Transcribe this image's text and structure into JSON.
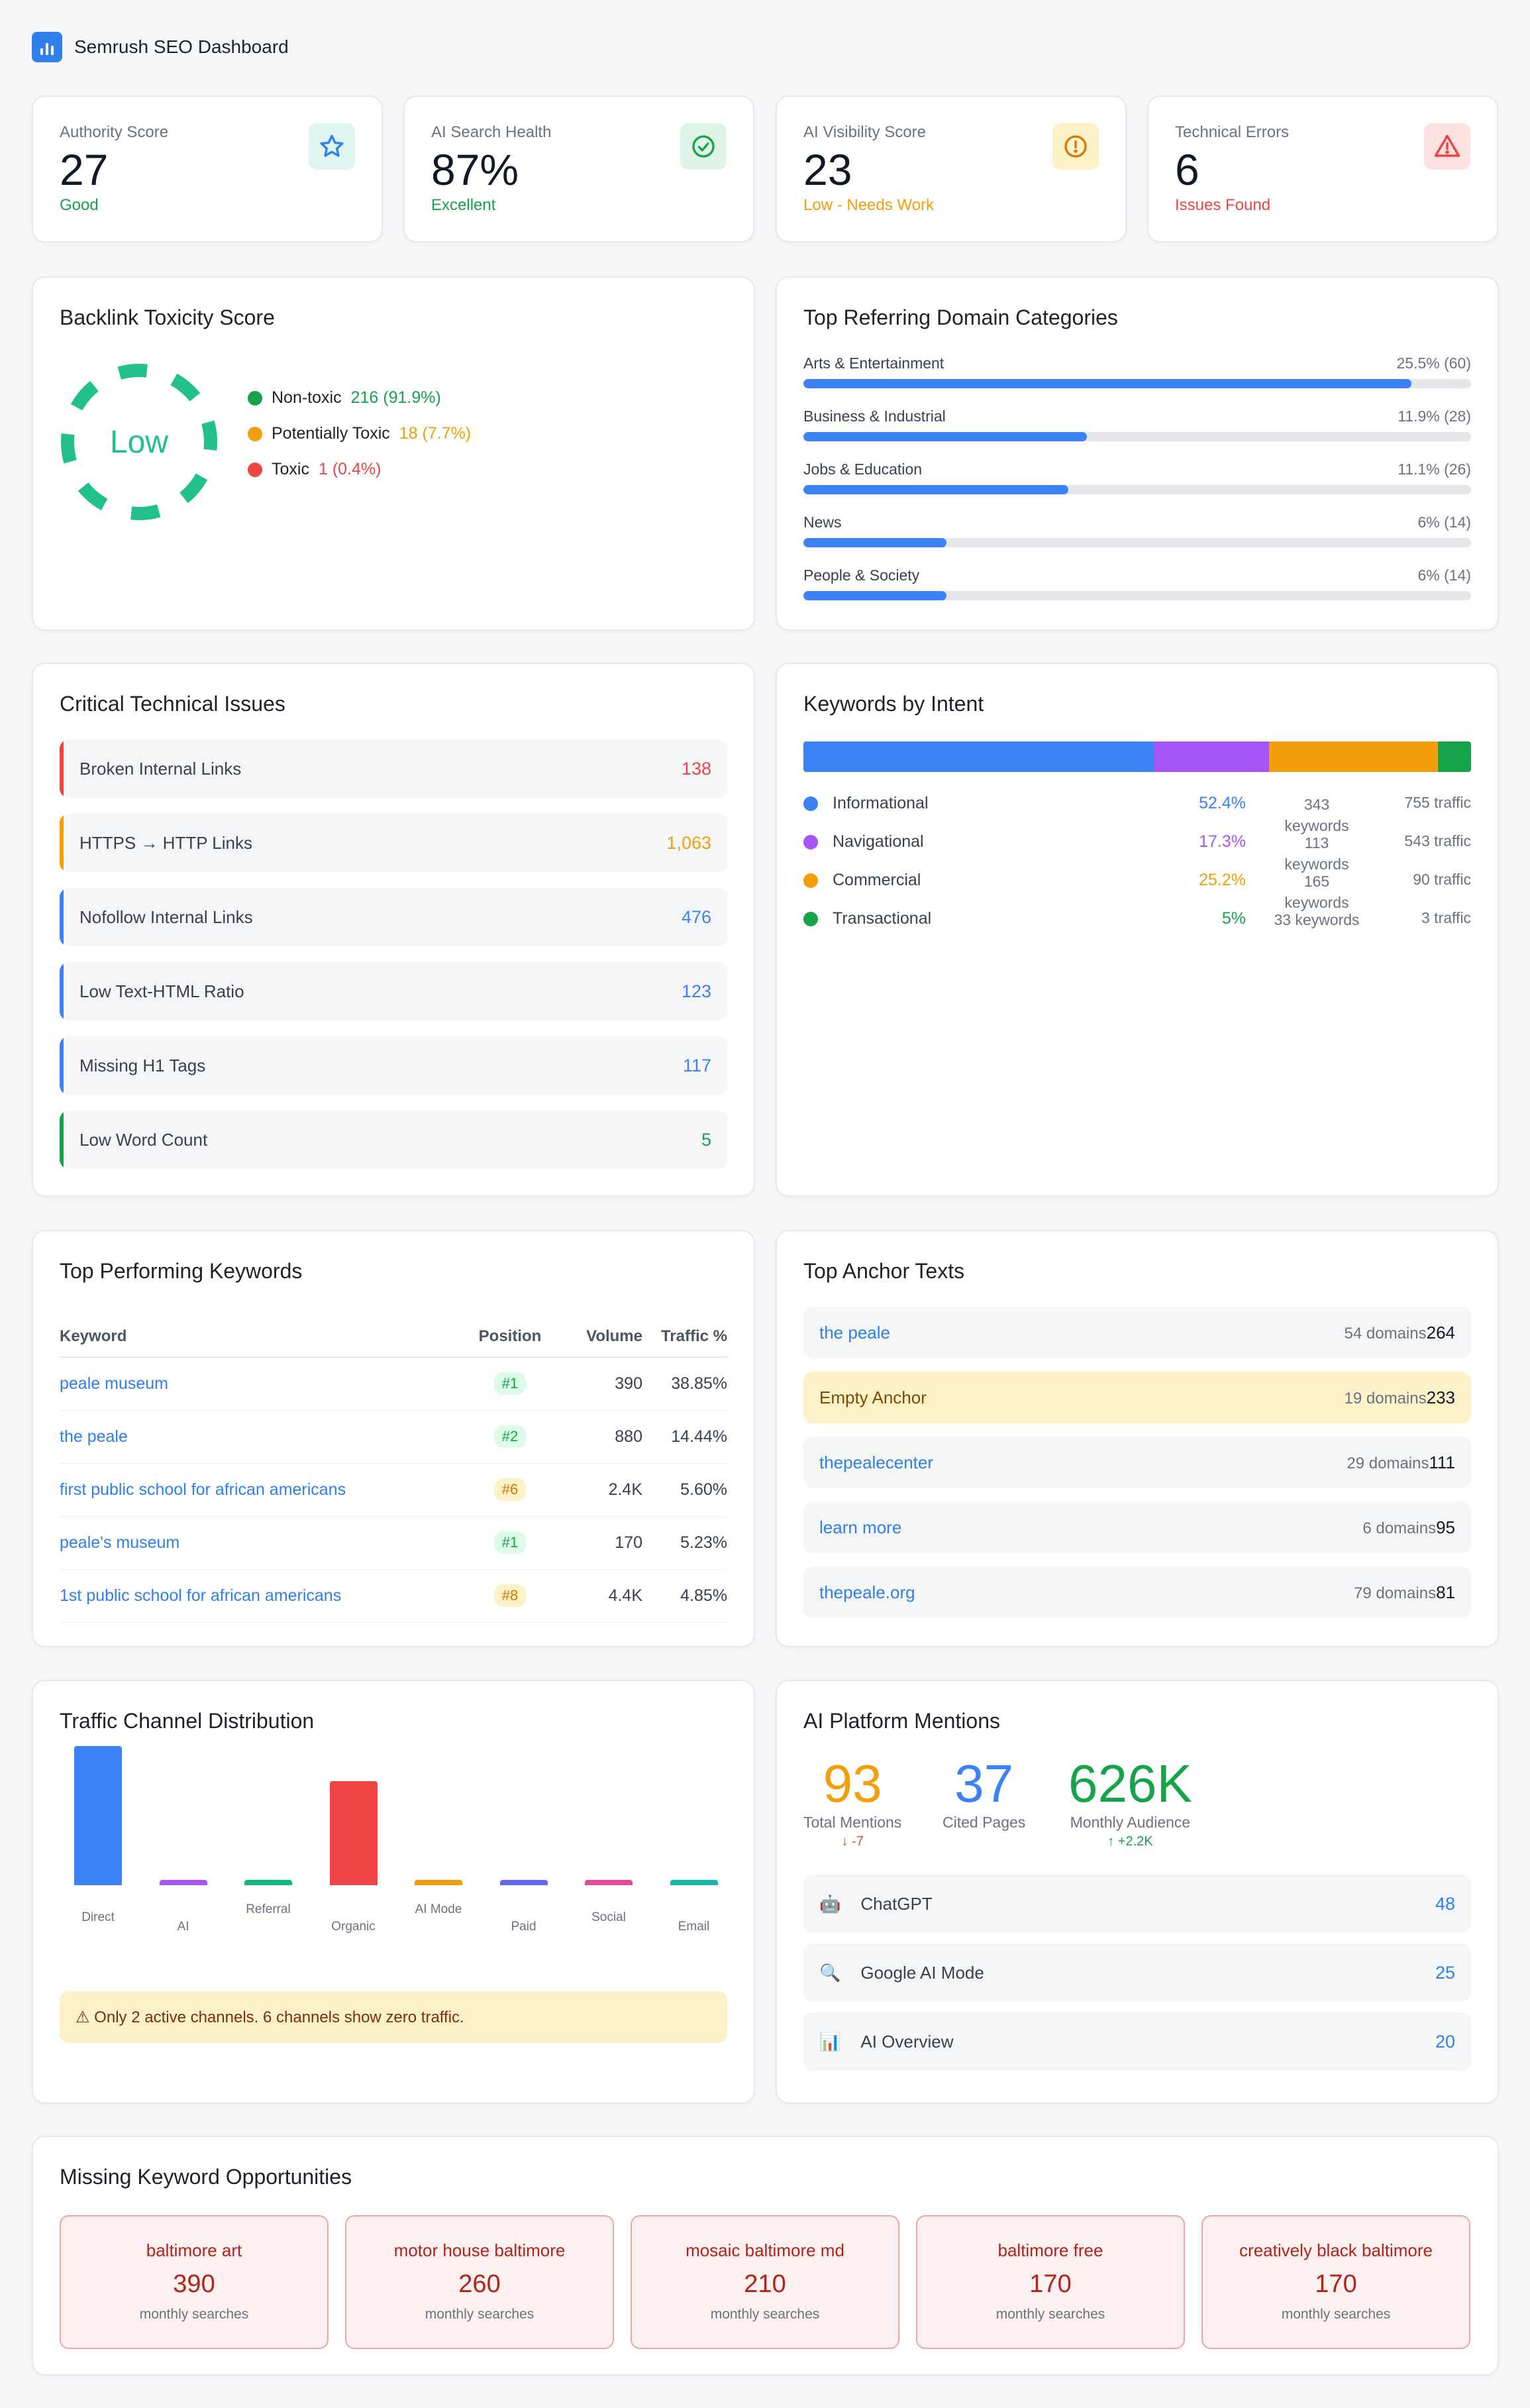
{
  "header": {
    "title": "Semrush SEO Dashboard",
    "icon": "bar-chart-icon"
  },
  "kpis": [
    {
      "label": "Authority Score",
      "value": "27",
      "status": "Good",
      "status_color": "#16a34a",
      "icon": "star-icon",
      "icon_bg": "#dff5f1",
      "icon_color": "#2f80ed"
    },
    {
      "label": "AI Search Health",
      "value": "87%",
      "status": "Excellent",
      "status_color": "#16a34a",
      "icon": "check-circle-icon",
      "icon_bg": "#dff5e8",
      "icon_color": "#16a34a"
    },
    {
      "label": "AI Visibility Score",
      "value": "23",
      "status": "Low - Needs Work",
      "status_color": "#f59e0b",
      "icon": "alert-circle-icon",
      "icon_bg": "#fdf1c7",
      "icon_color": "#d97706"
    },
    {
      "label": "Technical Errors",
      "value": "6",
      "status": "Issues Found",
      "status_color": "#ef4444",
      "icon": "warning-triangle-icon",
      "icon_bg": "#fde2e2",
      "icon_color": "#ef4444"
    }
  ],
  "toxicity": {
    "title": "Backlink Toxicity Score",
    "gauge_label": "Low",
    "gauge_color": "#22c08a",
    "legend": [
      {
        "label": "Non-toxic",
        "value": "216 (91.9%)",
        "color": "#16a34a"
      },
      {
        "label": "Potentially Toxic",
        "value": "18 (7.7%)",
        "color": "#f59e0b"
      },
      {
        "label": "Toxic",
        "value": "1 (0.4%)",
        "color": "#ef4444"
      }
    ]
  },
  "domains": {
    "title": "Top Referring Domain Categories",
    "items": [
      {
        "label": "Arts & Entertainment",
        "value": "25.5% (60)",
        "share": 25.5
      },
      {
        "label": "Business & Industrial",
        "value": "11.9% (28)",
        "share": 11.9
      },
      {
        "label": "Jobs & Education",
        "value": "11.1% (26)",
        "share": 11.1
      },
      {
        "label": "News",
        "value": "6% (14)",
        "share": 6
      },
      {
        "label": "People & Society",
        "value": "6% (14)",
        "share": 6
      }
    ]
  },
  "issues": {
    "title": "Critical Technical Issues",
    "items": [
      {
        "label": "Broken Internal Links",
        "value": "138",
        "color": "#ef4444"
      },
      {
        "label": "HTTPS → HTTP Links",
        "value": "1,063",
        "color": "#f59e0b"
      },
      {
        "label": "Nofollow Internal Links",
        "value": "476",
        "color": "#3b82f6"
      },
      {
        "label": "Low Text-HTML Ratio",
        "value": "123",
        "color": "#3b82f6"
      },
      {
        "label": "Missing H1 Tags",
        "value": "117",
        "color": "#3b82f6"
      },
      {
        "label": "Low Word Count",
        "value": "5",
        "color": "#16a34a"
      }
    ]
  },
  "intent": {
    "title": "Keywords by Intent",
    "items": [
      {
        "label": "Informational",
        "pct": "52.4%",
        "share": 52.4,
        "keywords": "343 keywords",
        "traffic": "755 traffic",
        "color": "#3b82f6"
      },
      {
        "label": "Navigational",
        "pct": "17.3%",
        "share": 17.3,
        "keywords": "113 keywords",
        "traffic": "543 traffic",
        "color": "#a855f7"
      },
      {
        "label": "Commercial",
        "pct": "25.2%",
        "share": 25.2,
        "keywords": "165 keywords",
        "traffic": "90 traffic",
        "color": "#f59e0b"
      },
      {
        "label": "Transactional",
        "pct": "5%",
        "share": 5,
        "keywords": "33 keywords",
        "traffic": "3 traffic",
        "color": "#16a34a"
      }
    ]
  },
  "keywords": {
    "title": "Top Performing Keywords",
    "headers": [
      "Keyword",
      "Position",
      "Volume",
      "Traffic %"
    ],
    "rows": [
      {
        "keyword": "peale museum",
        "position": "#1",
        "pos_bg": "#dcfce7",
        "pos_color": "#16a34a",
        "volume": "390",
        "traffic": "38.85%"
      },
      {
        "keyword": "the peale",
        "position": "#2",
        "pos_bg": "#dcfce7",
        "pos_color": "#16a34a",
        "volume": "880",
        "traffic": "14.44%"
      },
      {
        "keyword": "first public school for african americans",
        "position": "#6",
        "pos_bg": "#fdf1c7",
        "pos_color": "#d97706",
        "volume": "2.4K",
        "traffic": "5.60%"
      },
      {
        "keyword": "peale's museum",
        "position": "#1",
        "pos_bg": "#dcfce7",
        "pos_color": "#16a34a",
        "volume": "170",
        "traffic": "5.23%"
      },
      {
        "keyword": "1st public school for african americans",
        "position": "#8",
        "pos_bg": "#fdf1c7",
        "pos_color": "#d97706",
        "volume": "4.4K",
        "traffic": "4.85%"
      }
    ]
  },
  "anchors": {
    "title": "Top Anchor Texts",
    "items": [
      {
        "text": "the peale",
        "domains": "54 domains",
        "count": "264"
      },
      {
        "text": "Empty Anchor",
        "domains": "19 domains",
        "count": "233"
      },
      {
        "text": "thepealecenter",
        "domains": "29 domains",
        "count": "111"
      },
      {
        "text": "learn more",
        "domains": "6 domains",
        "count": "95"
      },
      {
        "text": "thepeale.org",
        "domains": "79 domains",
        "count": "81"
      }
    ]
  },
  "chart_data": {
    "type": "bar",
    "title": "Traffic Channel Distribution",
    "categories": [
      "Direct",
      "AI",
      "Referral",
      "Organic",
      "AI Mode",
      "Paid",
      "Social",
      "Email"
    ],
    "values": [
      100,
      0,
      0,
      75,
      0,
      0,
      0,
      0
    ],
    "colors": [
      "#3b82f6",
      "#a855f7",
      "#10b981",
      "#ef4444",
      "#f59e0b",
      "#6366f1",
      "#ec4899",
      "#14b8a6"
    ],
    "ylim": [
      0,
      100
    ],
    "grid": false
  },
  "traffic": {
    "warning": "⚠ Only 2 active channels. 6 channels show zero traffic."
  },
  "ai": {
    "title": "AI Platform Mentions",
    "stats": [
      {
        "value": "93",
        "label": "Total Mentions",
        "delta": "↓ -7",
        "color": "#f59e0b",
        "delta_color": "#ef4444"
      },
      {
        "value": "37",
        "label": "Cited Pages",
        "delta": "",
        "color": "#3b82f6",
        "delta_color": "#16a34a"
      },
      {
        "value": "626K",
        "label": "Monthly Audience",
        "delta": "↑ +2.2K",
        "color": "#16a34a",
        "delta_color": "#16a34a"
      }
    ],
    "platforms": [
      {
        "name": "ChatGPT",
        "icon": "robot-icon",
        "glyph": "🤖",
        "value": "48"
      },
      {
        "name": "Google AI Mode",
        "icon": "magnifier-icon",
        "glyph": "🔍",
        "value": "25"
      },
      {
        "name": "AI Overview",
        "icon": "bar-chart-icon",
        "glyph": "📊",
        "value": "20"
      }
    ]
  },
  "opportunities": {
    "title": "Missing Keyword Opportunities",
    "items": [
      {
        "keyword": "baltimore art",
        "value": "390",
        "sub": "monthly searches"
      },
      {
        "keyword": "motor house baltimore",
        "value": "260",
        "sub": "monthly searches"
      },
      {
        "keyword": "mosaic baltimore md",
        "value": "210",
        "sub": "monthly searches"
      },
      {
        "keyword": "baltimore free",
        "value": "170",
        "sub": "monthly searches"
      },
      {
        "keyword": "creatively black baltimore",
        "value": "170",
        "sub": "monthly searches"
      }
    ]
  }
}
